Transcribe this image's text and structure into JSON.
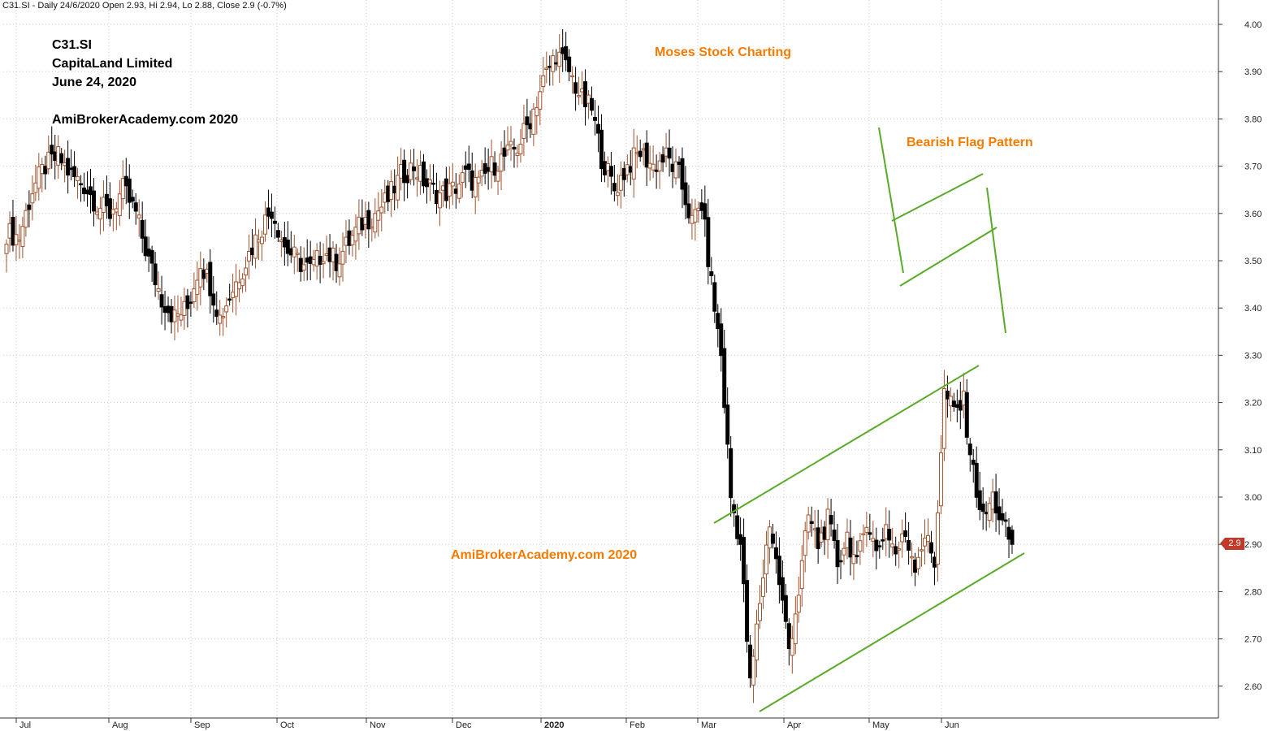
{
  "header": {
    "symbol_line": "C31.SI - Daily 24/6/2020 Open 2.93, Hi 2.94, Lo 2.88, Close 2.9 (-0.7%)"
  },
  "annotations": {
    "ticker": "C31.SI",
    "company": "CapitaLand Limited",
    "date": "June 24, 2020",
    "site_top": "AmiBrokerAcademy.com  2020",
    "moses": "Moses Stock Charting",
    "bearish_flag": "Bearish Flag Pattern",
    "site_bottom": "AmiBrokerAcademy.com 2020"
  },
  "last_price_label": "2.9",
  "colors": {
    "up_candle": "#a0522d",
    "down_candle": "#000000",
    "trend_lines": "#5aaa2a",
    "price_badge": "#c0392b",
    "orange_text": "#f57c00",
    "grid": "#c8c8c8"
  },
  "chart_data": {
    "type": "candlestick",
    "ylim": [
      2.53,
      4.03
    ],
    "y_ticks": [
      "4.00",
      "3.90",
      "3.80",
      "3.70",
      "3.60",
      "3.50",
      "3.40",
      "3.30",
      "3.20",
      "3.10",
      "3.00",
      "2.90",
      "2.80",
      "2.70",
      "2.60"
    ],
    "x_ticks": [
      "Jul",
      "Aug",
      "Sep",
      "Oct",
      "Nov",
      "Dec",
      "2020",
      "Feb",
      "Mar",
      "Apr",
      "May",
      "Jun"
    ],
    "grid": "dotted",
    "anchors": [
      [
        0,
        3.56
      ],
      [
        4,
        3.55
      ],
      [
        8,
        3.65
      ],
      [
        12,
        3.7
      ],
      [
        16,
        3.72
      ],
      [
        20,
        3.68
      ],
      [
        24,
        3.66
      ],
      [
        28,
        3.62
      ],
      [
        32,
        3.6
      ],
      [
        36,
        3.65
      ],
      [
        40,
        3.6
      ],
      [
        44,
        3.5
      ],
      [
        48,
        3.42
      ],
      [
        52,
        3.38
      ],
      [
        56,
        3.4
      ],
      [
        60,
        3.5
      ],
      [
        63,
        3.45
      ],
      [
        66,
        3.38
      ],
      [
        70,
        3.44
      ],
      [
        74,
        3.5
      ],
      [
        78,
        3.56
      ],
      [
        82,
        3.61
      ],
      [
        86,
        3.53
      ],
      [
        90,
        3.5
      ],
      [
        94,
        3.48
      ],
      [
        98,
        3.52
      ],
      [
        102,
        3.5
      ],
      [
        106,
        3.54
      ],
      [
        110,
        3.58
      ],
      [
        114,
        3.6
      ],
      [
        118,
        3.63
      ],
      [
        122,
        3.68
      ],
      [
        126,
        3.7
      ],
      [
        130,
        3.66
      ],
      [
        134,
        3.64
      ],
      [
        138,
        3.65
      ],
      [
        142,
        3.68
      ],
      [
        146,
        3.66
      ],
      [
        150,
        3.7
      ],
      [
        154,
        3.72
      ],
      [
        158,
        3.74
      ],
      [
        162,
        3.8
      ],
      [
        166,
        3.88
      ],
      [
        170,
        3.94
      ],
      [
        174,
        3.9
      ],
      [
        178,
        3.84
      ],
      [
        181,
        3.82
      ],
      [
        184,
        3.72
      ],
      [
        188,
        3.65
      ],
      [
        192,
        3.7
      ],
      [
        196,
        3.73
      ],
      [
        200,
        3.7
      ],
      [
        204,
        3.72
      ],
      [
        208,
        3.68
      ],
      [
        212,
        3.58
      ],
      [
        215,
        3.62
      ],
      [
        218,
        3.45
      ],
      [
        221,
        3.3
      ],
      [
        224,
        3.0
      ],
      [
        227,
        2.9
      ],
      [
        230,
        2.6
      ],
      [
        233,
        2.78
      ],
      [
        236,
        2.95
      ],
      [
        239,
        2.82
      ],
      [
        242,
        2.68
      ],
      [
        245,
        2.8
      ],
      [
        248,
        2.96
      ],
      [
        251,
        2.9
      ],
      [
        254,
        2.95
      ],
      [
        257,
        2.86
      ],
      [
        260,
        2.92
      ],
      [
        263,
        2.85
      ],
      [
        266,
        2.96
      ],
      [
        269,
        2.88
      ],
      [
        272,
        2.94
      ],
      [
        275,
        2.88
      ],
      [
        278,
        2.92
      ],
      [
        281,
        2.86
      ],
      [
        284,
        2.92
      ],
      [
        287,
        2.86
      ],
      [
        290,
        3.22
      ],
      [
        293,
        3.18
      ],
      [
        296,
        3.2
      ],
      [
        299,
        3.05
      ],
      [
        302,
        2.95
      ],
      [
        305,
        3.0
      ],
      [
        308,
        2.94
      ],
      [
        311,
        2.9
      ]
    ],
    "last_bar": {
      "date": "24/6/2020",
      "open": 2.93,
      "high": 2.94,
      "low": 2.88,
      "close": 2.9,
      "change_pct": -0.7
    }
  }
}
